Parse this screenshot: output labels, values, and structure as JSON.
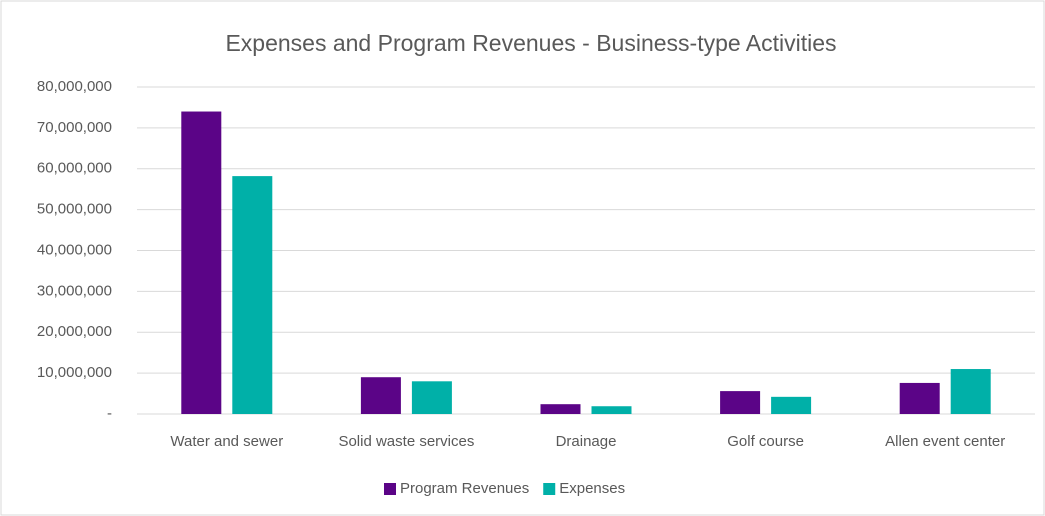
{
  "chart_data": {
    "type": "bar",
    "title": "Expenses and Program Revenues - Business-type Activities",
    "categories": [
      "Water and sewer",
      "Solid waste services",
      "Drainage",
      "Golf course",
      "Allen event center"
    ],
    "series": [
      {
        "name": "Program Revenues",
        "color": "#5b0487",
        "values": [
          74000000,
          9000000,
          2400000,
          5600000,
          7600000
        ]
      },
      {
        "name": "Expenses",
        "color": "#00b0a8",
        "values": [
          58200000,
          8000000,
          1900000,
          4200000,
          11000000
        ]
      }
    ],
    "ylim": [
      0,
      80000000
    ],
    "yticks": [
      {
        "value": 0,
        "label": "-"
      },
      {
        "value": 10000000,
        "label": "10,000,000"
      },
      {
        "value": 20000000,
        "label": "20,000,000"
      },
      {
        "value": 30000000,
        "label": "30,000,000"
      },
      {
        "value": 40000000,
        "label": "40,000,000"
      },
      {
        "value": 50000000,
        "label": "50,000,000"
      },
      {
        "value": 60000000,
        "label": "60,000,000"
      },
      {
        "value": 70000000,
        "label": "70,000,000"
      },
      {
        "value": 80000000,
        "label": "80,000,000"
      }
    ],
    "grid": true,
    "legend": "bottom"
  }
}
